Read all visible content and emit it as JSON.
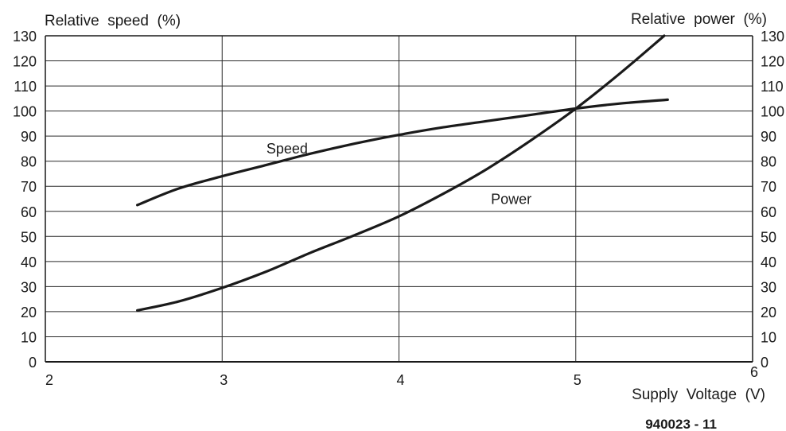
{
  "chart_data": {
    "type": "line",
    "xlabel": "Supply  Voltage  (V)",
    "ylabel_left": "Relative  speed  (%)",
    "ylabel_right": "Relative  power  (%)",
    "figure_id": "940023 - 11",
    "xlim": [
      2,
      6
    ],
    "ylim": [
      0,
      130
    ],
    "x_ticks": [
      2,
      3,
      4,
      5,
      6
    ],
    "y_ticks": [
      0,
      10,
      20,
      30,
      40,
      50,
      60,
      70,
      80,
      90,
      100,
      110,
      120,
      130
    ],
    "grid": true,
    "series": [
      {
        "name": "Speed",
        "label_at": [
          3.25,
          83
        ],
        "points": [
          [
            2.52,
            62.5
          ],
          [
            2.75,
            69
          ],
          [
            3.0,
            74
          ],
          [
            3.25,
            78.5
          ],
          [
            3.5,
            83
          ],
          [
            3.75,
            87
          ],
          [
            4.0,
            90.5
          ],
          [
            4.25,
            93.5
          ],
          [
            4.5,
            96
          ],
          [
            4.75,
            98.5
          ],
          [
            5.0,
            101
          ],
          [
            5.25,
            103
          ],
          [
            5.52,
            104.5
          ]
        ]
      },
      {
        "name": "Power",
        "label_at": [
          4.52,
          63
        ],
        "points": [
          [
            2.52,
            20.5
          ],
          [
            2.75,
            24
          ],
          [
            3.0,
            29.5
          ],
          [
            3.25,
            36
          ],
          [
            3.5,
            43.5
          ],
          [
            3.75,
            50.5
          ],
          [
            4.0,
            58
          ],
          [
            4.25,
            67
          ],
          [
            4.5,
            77
          ],
          [
            4.75,
            88.5
          ],
          [
            5.0,
            101
          ],
          [
            5.25,
            115
          ],
          [
            5.5,
            130
          ]
        ]
      }
    ],
    "colors": {
      "line": "#1a1a1a",
      "grid": "#2a2a2a",
      "background": "#ffffff"
    }
  }
}
